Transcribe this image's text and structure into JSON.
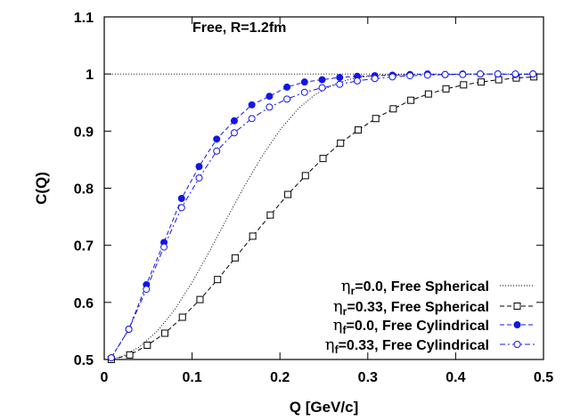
{
  "chart_data": {
    "type": "line",
    "title": "",
    "annotation": "Free, R=1.2fm",
    "xlabel": "Q [GeV/c]",
    "ylabel": "C(Q)",
    "xlim": [
      0,
      0.5
    ],
    "ylim": [
      0.5,
      1.1
    ],
    "xticks": [
      0,
      0.1,
      0.2,
      0.3,
      0.4,
      0.5
    ],
    "xtick_labels": [
      "0",
      "0.1",
      "0.2",
      "0.3",
      "0.4",
      "0.5"
    ],
    "yticks": [
      0.5,
      0.6,
      0.7,
      0.8,
      0.9,
      1.0,
      1.1
    ],
    "ytick_labels": [
      "0.5",
      "0.6",
      "0.7",
      "0.8",
      "0.9",
      "1",
      "1.1"
    ],
    "reference_line": {
      "y": 1.0,
      "style": "dotted"
    },
    "legend_position": "bottom-right",
    "series": [
      {
        "legend": {
          "eta": "η",
          "sub": "r",
          "rest": "=0.0, Free Spherical"
        },
        "style": "dotted",
        "color": "#000000",
        "marker": "none",
        "x": [
          0.005,
          0.02,
          0.04,
          0.06,
          0.08,
          0.1,
          0.12,
          0.14,
          0.16,
          0.18,
          0.2,
          0.22,
          0.24,
          0.26,
          0.28,
          0.3,
          0.32,
          0.34
        ],
        "y": [
          0.5,
          0.505,
          0.522,
          0.549,
          0.587,
          0.635,
          0.69,
          0.748,
          0.805,
          0.857,
          0.902,
          0.938,
          0.964,
          0.981,
          0.991,
          0.996,
          0.998,
          0.999
        ]
      },
      {
        "legend": {
          "eta": "η",
          "sub": "r",
          "rest": "=0.33, Free Spherical"
        },
        "style": "dashed",
        "color": "#000000",
        "marker": "open-square",
        "x": [
          0.008,
          0.029,
          0.049,
          0.069,
          0.089,
          0.109,
          0.129,
          0.149,
          0.169,
          0.189,
          0.209,
          0.229,
          0.249,
          0.269,
          0.289,
          0.309,
          0.329,
          0.349,
          0.369,
          0.389,
          0.409,
          0.429,
          0.449,
          0.469,
          0.489
        ],
        "y": [
          0.5,
          0.508,
          0.525,
          0.546,
          0.574,
          0.605,
          0.64,
          0.678,
          0.716,
          0.753,
          0.789,
          0.822,
          0.852,
          0.879,
          0.902,
          0.922,
          0.939,
          0.954,
          0.965,
          0.974,
          0.981,
          0.986,
          0.99,
          0.993,
          0.995
        ]
      },
      {
        "legend": {
          "eta": "η",
          "sub": "f",
          "rest": "=0.0, Free Cylindrical"
        },
        "style": "dashed",
        "color": "#1515e6",
        "marker": "filled-circle",
        "x": [
          0.008,
          0.028,
          0.048,
          0.068,
          0.088,
          0.108,
          0.128,
          0.148,
          0.168,
          0.188,
          0.208,
          0.228,
          0.248,
          0.268,
          0.288,
          0.308,
          0.328,
          0.348,
          0.368,
          0.388,
          0.408,
          0.428,
          0.448,
          0.468,
          0.488
        ],
        "y": [
          0.503,
          0.553,
          0.631,
          0.705,
          0.782,
          0.838,
          0.886,
          0.918,
          0.946,
          0.961,
          0.977,
          0.986,
          0.99,
          0.994,
          0.996,
          0.997,
          0.998,
          0.999,
          1.0,
          0.999,
          1.0,
          1.0,
          1.0,
          0.999,
          1.0
        ]
      },
      {
        "legend": {
          "eta": "η",
          "sub": "f",
          "rest": "=0.33, Free Cylindrical"
        },
        "style": "dash-dot",
        "color": "#1515e6",
        "marker": "open-circle",
        "x": [
          0.008,
          0.028,
          0.048,
          0.068,
          0.088,
          0.108,
          0.128,
          0.148,
          0.168,
          0.188,
          0.208,
          0.228,
          0.248,
          0.268,
          0.288,
          0.308,
          0.328,
          0.348,
          0.368,
          0.388,
          0.408,
          0.428,
          0.448,
          0.468,
          0.488
        ],
        "y": [
          0.503,
          0.553,
          0.623,
          0.697,
          0.766,
          0.818,
          0.865,
          0.897,
          0.922,
          0.942,
          0.956,
          0.968,
          0.976,
          0.982,
          0.988,
          0.992,
          0.995,
          0.997,
          0.998,
          0.999,
          0.999,
          1.0,
          1.0,
          1.0,
          1.0
        ]
      }
    ]
  }
}
